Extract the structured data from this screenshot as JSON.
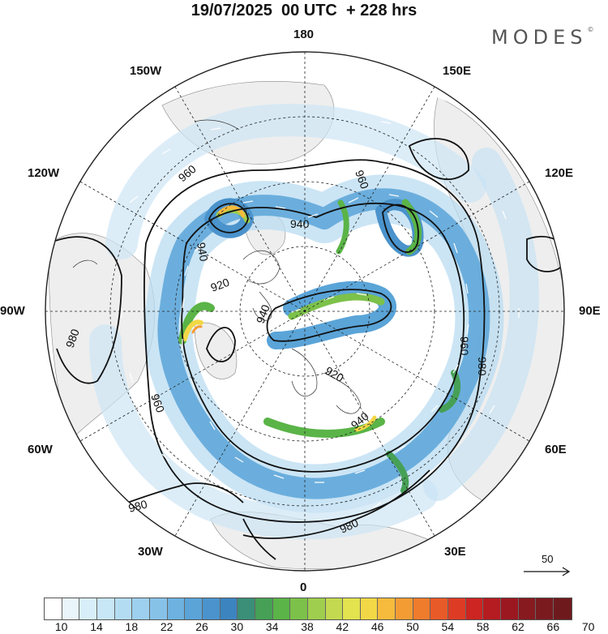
{
  "title": "19/07/2025  00 UTC  + 228 hrs",
  "brand": "MODES",
  "brand_mark": "©",
  "lon_labels": {
    "n180": "180",
    "n0": "0",
    "w150": "150W",
    "e150": "150E",
    "w120": "120W",
    "e120": "120E",
    "w90": "90W",
    "e90": "90E",
    "w60": "60W",
    "e60": "60E",
    "w30": "30W",
    "e30": "30E"
  },
  "contour_labels": [
    "960",
    "960",
    "940",
    "940",
    "920",
    "940",
    "980",
    "960",
    "960",
    "980",
    "920",
    "940",
    "980",
    "980"
  ],
  "wind_reference": "50",
  "colorbar": {
    "ticks": [
      "10",
      "14",
      "18",
      "22",
      "26",
      "30",
      "34",
      "38",
      "42",
      "46",
      "50",
      "54",
      "58",
      "62",
      "66",
      "70"
    ],
    "colors": [
      "#ffffff",
      "#e9f5fb",
      "#d8eef9",
      "#c7e6f6",
      "#b3dcf2",
      "#9dd0ee",
      "#86c2e8",
      "#6db2e0",
      "#5aa4d8",
      "#4b93cc",
      "#3c84c0",
      "#3b8e78",
      "#46a055",
      "#5ab447",
      "#7cc14a",
      "#9fce4e",
      "#c3d94f",
      "#e3e24f",
      "#f2d846",
      "#f6bb3c",
      "#f49c34",
      "#ef7b2c",
      "#e85a27",
      "#dd3b24",
      "#cc2522",
      "#b51c21",
      "#9b1820",
      "#861a1f",
      "#7a1a1f",
      "#6e1a1d"
    ]
  }
}
